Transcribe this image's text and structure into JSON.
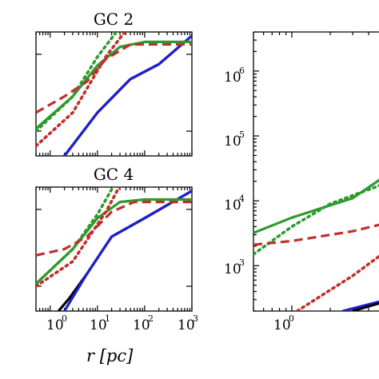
{
  "chart_data": [
    {
      "type": "line",
      "title": "GC 2",
      "xscale": "log",
      "xlim": [
        0.5,
        1000
      ],
      "series": [
        {
          "color": "#000000",
          "style": "solid",
          "x": [
            0.5,
            2,
            10,
            50,
            200,
            1000
          ],
          "y": [
            -0.3,
            0,
            0.35,
            0.62,
            0.74,
            0.97
          ]
        },
        {
          "color": "#1f1fd0",
          "style": "solid",
          "x": [
            2,
            10,
            50,
            200,
            1000
          ],
          "y": [
            0.0,
            0.35,
            0.62,
            0.74,
            0.97
          ]
        },
        {
          "color": "#2e9a2e",
          "style": "solid",
          "x": [
            0.5,
            3,
            10,
            30,
            100,
            1000
          ],
          "y": [
            0.22,
            0.48,
            0.73,
            0.88,
            0.92,
            0.92
          ]
        },
        {
          "color": "#2e9a2e",
          "style": "dotted",
          "x": [
            0.5,
            3,
            10,
            40
          ],
          "y": [
            0.2,
            0.48,
            0.8,
            1.1
          ]
        },
        {
          "color": "#c0302b",
          "style": "dashed",
          "x": [
            0.5,
            2,
            6,
            15,
            50,
            1000
          ],
          "y": [
            0.35,
            0.48,
            0.6,
            0.78,
            0.9,
            0.9
          ]
        },
        {
          "color": "#c0302b",
          "style": "dotted",
          "x": [
            0.5,
            3,
            15,
            60
          ],
          "y": [
            0.08,
            0.35,
            0.8,
            1.1
          ]
        }
      ]
    },
    {
      "type": "line",
      "title": "GC 4",
      "xscale": "log",
      "xlim": [
        0.5,
        1000
      ],
      "x_ticks": [
        "10",
        "10",
        "10",
        "10"
      ],
      "x_tick_exponents": [
        "0",
        "1",
        "2",
        "3"
      ],
      "series": [
        {
          "color": "#000000",
          "style": "solid",
          "x": [
            1.5,
            2.5,
            6,
            20,
            100,
            1000
          ],
          "y": [
            0.0,
            0.1,
            0.3,
            0.6,
            0.75,
            0.97
          ]
        },
        {
          "color": "#1f1fd0",
          "style": "solid",
          "x": [
            2,
            6,
            20,
            100,
            1000
          ],
          "y": [
            0.0,
            0.3,
            0.6,
            0.75,
            0.97
          ]
        },
        {
          "color": "#2e9a2e",
          "style": "solid",
          "x": [
            0.5,
            3,
            10,
            30,
            100,
            1000
          ],
          "y": [
            0.22,
            0.5,
            0.75,
            0.88,
            0.9,
            0.9
          ]
        },
        {
          "color": "#2e9a2e",
          "style": "dotted",
          "x": [
            0.5,
            3,
            10,
            30
          ],
          "y": [
            0.22,
            0.5,
            0.78,
            1.1
          ]
        },
        {
          "color": "#c0302b",
          "style": "dashed",
          "x": [
            0.5,
            2,
            6,
            20,
            60,
            1000
          ],
          "y": [
            0.45,
            0.5,
            0.6,
            0.8,
            0.88,
            0.88
          ]
        },
        {
          "color": "#c0302b",
          "style": "dotted",
          "x": [
            0.5,
            3,
            15,
            40
          ],
          "y": [
            0.2,
            0.4,
            0.8,
            1.1
          ]
        }
      ]
    },
    {
      "type": "line",
      "title": "",
      "xscale": "log",
      "yscale": "log",
      "xlim": [
        0.5,
        30
      ],
      "ylim": [
        200,
        4000000
      ],
      "x_ticks": [
        "10"
      ],
      "x_tick_exponents": [
        "0"
      ],
      "y_ticks": [
        "10",
        "10",
        "10",
        "10"
      ],
      "y_tick_exponents": [
        "3",
        "4",
        "5",
        "6"
      ],
      "series": [
        {
          "color": "#2e9a2e",
          "style": "solid",
          "x": [
            0.5,
            1,
            3,
            10,
            30
          ],
          "y": [
            3200,
            5500,
            11000,
            55000,
            170000
          ]
        },
        {
          "color": "#2e9a2e",
          "style": "dotted",
          "x": [
            0.5,
            1,
            2,
            6
          ],
          "y": [
            1500,
            4000,
            9000,
            20000
          ]
        },
        {
          "color": "#c0302b",
          "style": "dashed",
          "x": [
            0.5,
            1,
            3,
            10,
            30
          ],
          "y": [
            2100,
            2400,
            3400,
            6000,
            17000
          ]
        },
        {
          "color": "#c0302b",
          "style": "dotted",
          "x": [
            1.1,
            3,
            10,
            30
          ],
          "y": [
            200,
            700,
            4000,
            15000
          ]
        },
        {
          "color": "#1f1fd0",
          "style": "solid",
          "x": [
            2.5,
            10,
            30
          ],
          "y": [
            200,
            400,
            900
          ]
        },
        {
          "color": "#000000",
          "style": "solid",
          "x": [
            3,
            10,
            30
          ],
          "y": [
            200,
            400,
            900
          ]
        }
      ]
    }
  ],
  "xlabel": "r  [pc]"
}
